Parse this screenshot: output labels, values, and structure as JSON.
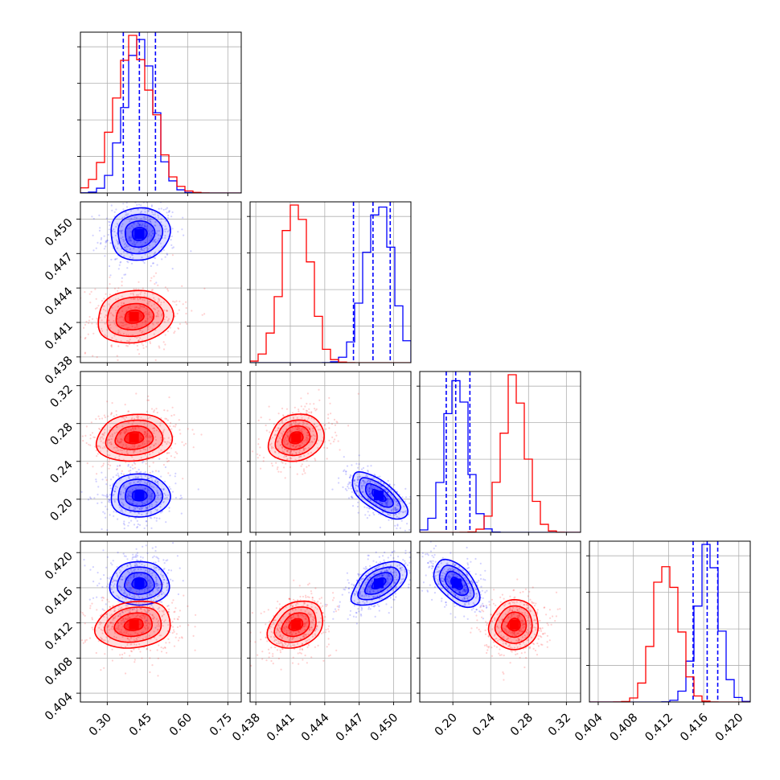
{
  "chart_data": {
    "type": "corner",
    "grid": true,
    "colors": {
      "blue": "#0000ff",
      "red": "#ff0000"
    },
    "series": [
      {
        "color": "#0000ff",
        "mean": [
          0.42,
          0.4487,
          0.204,
          0.4165
        ],
        "sd": [
          0.055,
          0.0012,
          0.012,
          0.0013
        ],
        "quantiles": [
          [
            0.36,
            0.42,
            0.48
          ],
          [
            0.4465,
            0.4482,
            0.4497
          ],
          [
            0.193,
            0.203,
            0.218
          ],
          [
            0.4148,
            0.4164,
            0.4176
          ]
        ],
        "corr": {
          "1-0": 0.05,
          "2-0": 0.0,
          "2-1": -0.65,
          "3-0": 0.0,
          "3-1": 0.55,
          "3-2": -0.5
        }
      },
      {
        "color": "#ff0000",
        "mean": [
          0.4,
          0.4415,
          0.265,
          0.4118
        ],
        "sd": [
          0.07,
          0.0012,
          0.013,
          0.0014
        ],
        "quantiles": null,
        "corr": {
          "1-0": 0.1,
          "2-0": 0.1,
          "2-1": 0.2,
          "3-0": 0.15,
          "3-1": 0.3,
          "3-2": 0.1
        }
      }
    ],
    "params": [
      {
        "range": [
          0.2,
          0.8
        ],
        "ticks": [
          "0.30",
          "0.45",
          "0.60",
          "0.75"
        ]
      },
      {
        "range": [
          0.4375,
          0.4515
        ],
        "ticks": [
          "0.438",
          "0.441",
          "0.444",
          "0.447",
          "0.450"
        ]
      },
      {
        "range": [
          0.165,
          0.335
        ],
        "ticks": [
          "0.20",
          "0.24",
          "0.28",
          "0.32"
        ]
      },
      {
        "range": [
          0.403,
          0.4213
        ],
        "ticks": [
          "0.404",
          "0.408",
          "0.412",
          "0.416",
          "0.420"
        ]
      }
    ]
  }
}
